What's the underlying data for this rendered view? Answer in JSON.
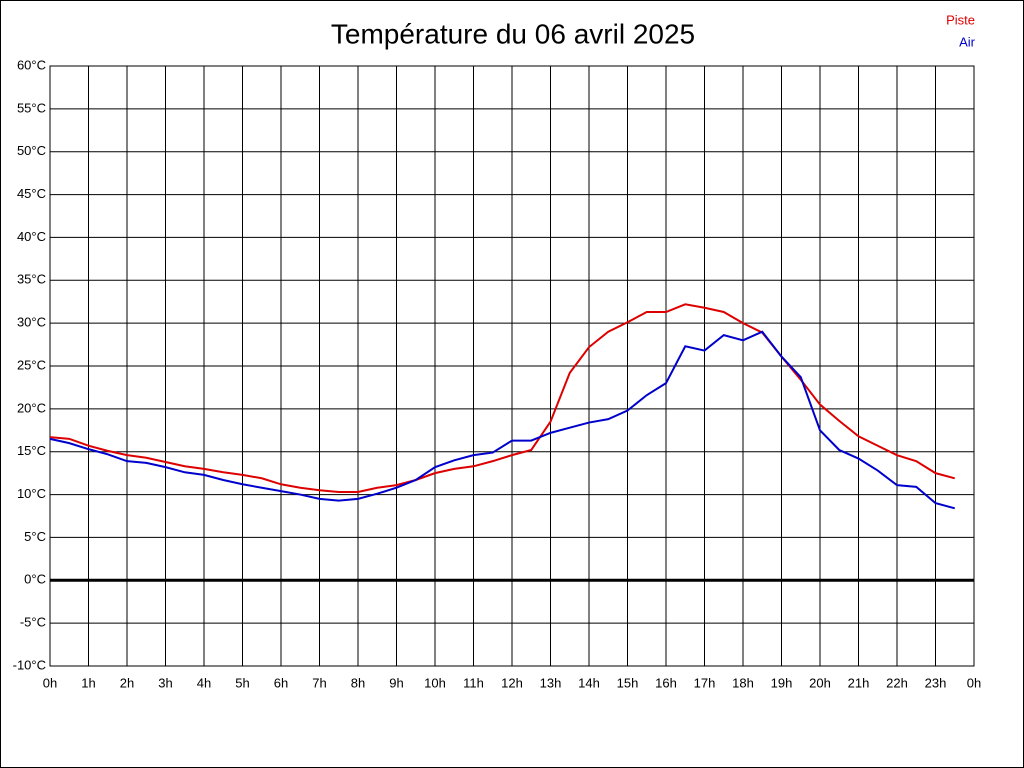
{
  "chart_data": {
    "type": "line",
    "title": "Température du 06 avril 2025",
    "x": [
      0,
      0.5,
      1,
      1.5,
      2,
      2.5,
      3,
      3.5,
      4,
      4.5,
      5,
      5.5,
      6,
      6.5,
      7,
      7.5,
      8,
      8.5,
      9,
      9.5,
      10,
      10.5,
      11,
      11.5,
      12,
      12.5,
      13,
      13.5,
      14,
      14.5,
      15,
      15.5,
      16,
      16.5,
      17,
      17.5,
      18,
      18.5,
      19,
      19.5,
      20,
      20.5,
      21,
      21.5,
      22,
      22.5,
      23,
      23.5
    ],
    "series": [
      {
        "name": "Piste",
        "color": "#dd0000",
        "values": [
          16.7,
          16.5,
          15.7,
          15.1,
          14.6,
          14.3,
          13.8,
          13.3,
          13.0,
          12.6,
          12.3,
          11.9,
          11.2,
          10.8,
          10.5,
          10.3,
          10.3,
          10.8,
          11.1,
          11.7,
          12.5,
          13.0,
          13.3,
          13.9,
          14.6,
          15.2,
          18.5,
          24.2,
          27.2,
          29.0,
          30.1,
          31.3,
          31.3,
          32.2,
          31.8,
          31.3,
          30.0,
          28.9,
          26.1,
          23.4,
          20.5,
          18.6,
          16.8,
          15.7,
          14.6,
          13.9,
          12.5,
          11.9
        ]
      },
      {
        "name": "Air",
        "color": "#0000cc",
        "values": [
          16.5,
          16.0,
          15.3,
          14.7,
          13.9,
          13.7,
          13.2,
          12.6,
          12.3,
          11.7,
          11.2,
          10.8,
          10.4,
          10.0,
          9.5,
          9.3,
          9.5,
          10.1,
          10.8,
          11.7,
          13.2,
          14.0,
          14.6,
          14.9,
          16.3,
          16.3,
          17.2,
          17.8,
          18.4,
          18.8,
          19.8,
          21.6,
          23.0,
          27.3,
          26.8,
          28.6,
          28.0,
          29.0,
          26.1,
          23.7,
          17.5,
          15.2,
          14.2,
          12.8,
          11.1,
          10.9,
          9.0,
          8.4
        ]
      }
    ],
    "xlim": [
      0,
      24
    ],
    "xticks": [
      {
        "value": 0,
        "label": "0h"
      },
      {
        "value": 1,
        "label": "1h"
      },
      {
        "value": 2,
        "label": "2h"
      },
      {
        "value": 3,
        "label": "3h"
      },
      {
        "value": 4,
        "label": "4h"
      },
      {
        "value": 5,
        "label": "5h"
      },
      {
        "value": 6,
        "label": "6h"
      },
      {
        "value": 7,
        "label": "7h"
      },
      {
        "value": 8,
        "label": "8h"
      },
      {
        "value": 9,
        "label": "9h"
      },
      {
        "value": 10,
        "label": "10h"
      },
      {
        "value": 11,
        "label": "11h"
      },
      {
        "value": 12,
        "label": "12h"
      },
      {
        "value": 13,
        "label": "13h"
      },
      {
        "value": 14,
        "label": "14h"
      },
      {
        "value": 15,
        "label": "15h"
      },
      {
        "value": 16,
        "label": "16h"
      },
      {
        "value": 17,
        "label": "17h"
      },
      {
        "value": 18,
        "label": "18h"
      },
      {
        "value": 19,
        "label": "19h"
      },
      {
        "value": 20,
        "label": "20h"
      },
      {
        "value": 21,
        "label": "21h"
      },
      {
        "value": 22,
        "label": "22h"
      },
      {
        "value": 23,
        "label": "23h"
      },
      {
        "value": 24,
        "label": "0h"
      }
    ],
    "ylim": [
      -10,
      60
    ],
    "yticks": [
      {
        "value": -10,
        "label": "-10°C"
      },
      {
        "value": -5,
        "label": "-5°C"
      },
      {
        "value": 0,
        "label": "0°C"
      },
      {
        "value": 5,
        "label": "5°C"
      },
      {
        "value": 10,
        "label": "10°C"
      },
      {
        "value": 15,
        "label": "15°C"
      },
      {
        "value": 20,
        "label": "20°C"
      },
      {
        "value": 25,
        "label": "25°C"
      },
      {
        "value": 30,
        "label": "30°C"
      },
      {
        "value": 35,
        "label": "35°C"
      },
      {
        "value": 40,
        "label": "40°C"
      },
      {
        "value": 45,
        "label": "45°C"
      },
      {
        "value": 50,
        "label": "50°C"
      },
      {
        "value": 55,
        "label": "55°C"
      },
      {
        "value": 60,
        "label": "60°C"
      }
    ],
    "grid": true,
    "legend": "top-right"
  }
}
